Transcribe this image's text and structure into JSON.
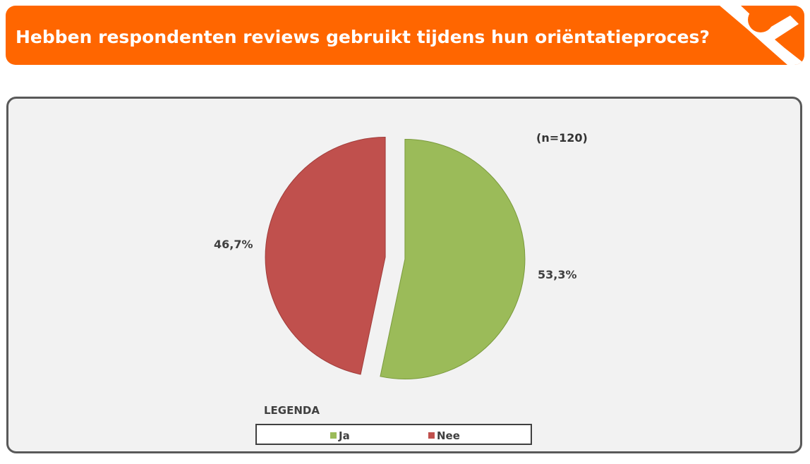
{
  "header": {
    "title": "Hebben respondenten reviews gebruikt tijdens hun oriëntatieproces?"
  },
  "colors": {
    "brand_orange": "#ff6600",
    "ja": "#9bbb59",
    "nee": "#c0504d"
  },
  "chart_data": {
    "type": "pie",
    "title": "",
    "sample_note": "(n=120)",
    "slices": [
      {
        "name": "Ja",
        "value": 53.3,
        "label": "53,3%",
        "color": "#9bbb59"
      },
      {
        "name": "Nee",
        "value": 46.7,
        "label": "46,7%",
        "color": "#c0504d"
      }
    ],
    "exploded": true,
    "legend": {
      "title": "LEGENDA",
      "placement": "bottom",
      "items": [
        "Ja",
        "Nee"
      ]
    }
  }
}
